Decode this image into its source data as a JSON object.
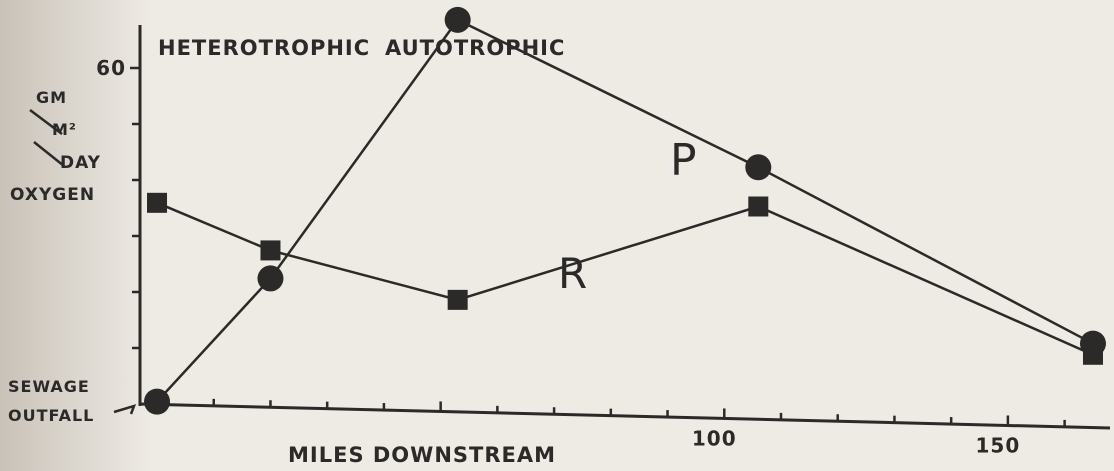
{
  "chart_data": {
    "type": "line",
    "title": "",
    "header": {
      "left": "HETEROTROPHIC",
      "right": "AUTOTROPHIC"
    },
    "ylabel": [
      "GM",
      "M²",
      "DAY",
      "OXYGEN"
    ],
    "xlabel": "MILES DOWNSTREAM",
    "annotation": [
      "SEWAGE",
      "OUTFALL"
    ],
    "xlim": [
      -3,
      168
    ],
    "ylim": [
      0,
      65
    ],
    "yticks": [
      60
    ],
    "xticks": [
      100,
      150
    ],
    "series": [
      {
        "name": "P",
        "marker": "circle",
        "x": [
          0,
          20,
          53,
          106,
          165
        ],
        "y": [
          0.5,
          23,
          70,
          45,
          15
        ]
      },
      {
        "name": "R",
        "marker": "square",
        "x": [
          0,
          20,
          53,
          106,
          165
        ],
        "y": [
          36,
          28,
          20,
          38,
          13
        ]
      }
    ]
  }
}
